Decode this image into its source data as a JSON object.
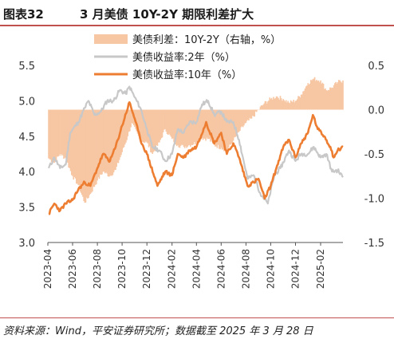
{
  "header": {
    "figure_label": "图表32",
    "title": "3 月美债 10Y-2Y 期限利差扩大"
  },
  "footer": {
    "source": "资料来源：Wind，平安证券研究所；数据截至 2025 年 3 月 28 日"
  },
  "colors": {
    "spread": "#f7c6a3",
    "y2": "#c8c8c8",
    "y10": "#ed7d31",
    "rule": "#c0504d",
    "axis_text": "#333333"
  },
  "chart_data": {
    "type": "line",
    "x_range": [
      "2023-04-01",
      "2025-03-28"
    ],
    "x_ticks": [
      "2023-04",
      "2023-06",
      "2023-08",
      "2023-10",
      "2023-12",
      "2024-02",
      "2024-04",
      "2024-06",
      "2024-08",
      "2024-10",
      "2024-12",
      "2025-02"
    ],
    "y_left": {
      "ticks": [
        "3.0",
        "3.5",
        "4.0",
        "4.5",
        "5.0",
        "5.5"
      ],
      "ylim": [
        3.0,
        5.5
      ]
    },
    "y_right": {
      "ticks": [
        "0.5",
        "0.0",
        "-0.5",
        "-1.0",
        "-1.5"
      ],
      "ylim": [
        -1.5,
        0.5
      ]
    },
    "legend_position": "top-right",
    "series": [
      {
        "name": "美债利差：10Y-2Y（右轴，%）",
        "type": "bar",
        "axis": "right",
        "points": [
          [
            "2023-04-03",
            -0.55
          ],
          [
            "2023-04-17",
            -0.6
          ],
          [
            "2023-05-01",
            -0.5
          ],
          [
            "2023-05-15",
            -0.55
          ],
          [
            "2023-06-01",
            -0.75
          ],
          [
            "2023-06-15",
            -0.85
          ],
          [
            "2023-07-01",
            -1.05
          ],
          [
            "2023-07-15",
            -0.95
          ],
          [
            "2023-08-01",
            -0.8
          ],
          [
            "2023-08-15",
            -0.7
          ],
          [
            "2023-09-01",
            -0.75
          ],
          [
            "2023-09-15",
            -0.68
          ],
          [
            "2023-10-01",
            -0.48
          ],
          [
            "2023-10-15",
            -0.3
          ],
          [
            "2023-10-25",
            -0.15
          ],
          [
            "2023-11-15",
            -0.35
          ],
          [
            "2023-12-01",
            -0.37
          ],
          [
            "2023-12-15",
            -0.5
          ],
          [
            "2024-01-01",
            -0.37
          ],
          [
            "2024-01-15",
            -0.22
          ],
          [
            "2024-02-01",
            -0.33
          ],
          [
            "2024-02-15",
            -0.4
          ],
          [
            "2024-03-01",
            -0.42
          ],
          [
            "2024-03-15",
            -0.4
          ],
          [
            "2024-04-01",
            -0.37
          ],
          [
            "2024-04-15",
            -0.32
          ],
          [
            "2024-05-01",
            -0.33
          ],
          [
            "2024-05-15",
            -0.4
          ],
          [
            "2024-06-01",
            -0.43
          ],
          [
            "2024-06-15",
            -0.46
          ],
          [
            "2024-07-01",
            -0.35
          ],
          [
            "2024-07-15",
            -0.25
          ],
          [
            "2024-08-01",
            -0.15
          ],
          [
            "2024-08-15",
            -0.1
          ],
          [
            "2024-09-01",
            0.0
          ],
          [
            "2024-09-15",
            0.07
          ],
          [
            "2024-10-01",
            0.12
          ],
          [
            "2024-10-15",
            0.15
          ],
          [
            "2024-11-01",
            0.12
          ],
          [
            "2024-11-15",
            0.08
          ],
          [
            "2024-12-01",
            0.1
          ],
          [
            "2024-12-15",
            0.17
          ],
          [
            "2025-01-01",
            0.3
          ],
          [
            "2025-01-15",
            0.35
          ],
          [
            "2025-02-01",
            0.33
          ],
          [
            "2025-02-15",
            0.22
          ],
          [
            "2025-03-01",
            0.25
          ],
          [
            "2025-03-15",
            0.31
          ],
          [
            "2025-03-28",
            0.33
          ]
        ]
      },
      {
        "name": "美债收益率:2年（%）",
        "type": "line",
        "axis": "left",
        "points": [
          [
            "2023-04-03",
            4.05
          ],
          [
            "2023-04-17",
            4.2
          ],
          [
            "2023-05-01",
            4.05
          ],
          [
            "2023-05-15",
            4.1
          ],
          [
            "2023-05-26",
            4.55
          ],
          [
            "2023-06-15",
            4.7
          ],
          [
            "2023-07-01",
            4.9
          ],
          [
            "2023-07-10",
            5.0
          ],
          [
            "2023-07-25",
            4.8
          ],
          [
            "2023-08-10",
            4.85
          ],
          [
            "2023-08-25",
            5.0
          ],
          [
            "2023-09-10",
            5.0
          ],
          [
            "2023-09-25",
            5.15
          ],
          [
            "2023-10-10",
            5.1
          ],
          [
            "2023-10-19",
            5.2
          ],
          [
            "2023-11-01",
            5.05
          ],
          [
            "2023-11-15",
            4.9
          ],
          [
            "2023-12-01",
            4.6
          ],
          [
            "2023-12-14",
            4.35
          ],
          [
            "2024-01-01",
            4.3
          ],
          [
            "2024-01-15",
            4.15
          ],
          [
            "2024-02-01",
            4.25
          ],
          [
            "2024-02-15",
            4.6
          ],
          [
            "2024-03-01",
            4.55
          ],
          [
            "2024-03-15",
            4.7
          ],
          [
            "2024-04-01",
            4.7
          ],
          [
            "2024-04-15",
            4.95
          ],
          [
            "2024-04-30",
            5.0
          ],
          [
            "2024-05-15",
            4.8
          ],
          [
            "2024-06-01",
            4.85
          ],
          [
            "2024-06-15",
            4.7
          ],
          [
            "2024-07-01",
            4.7
          ],
          [
            "2024-07-15",
            4.45
          ],
          [
            "2024-08-05",
            3.9
          ],
          [
            "2024-08-20",
            3.95
          ],
          [
            "2024-09-05",
            3.7
          ],
          [
            "2024-09-24",
            3.55
          ],
          [
            "2024-10-10",
            3.95
          ],
          [
            "2024-10-25",
            4.05
          ],
          [
            "2024-11-15",
            4.3
          ],
          [
            "2024-12-01",
            4.15
          ],
          [
            "2024-12-15",
            4.25
          ],
          [
            "2025-01-01",
            4.25
          ],
          [
            "2025-01-15",
            4.35
          ],
          [
            "2025-02-01",
            4.2
          ],
          [
            "2025-02-15",
            4.25
          ],
          [
            "2025-03-01",
            4.0
          ],
          [
            "2025-03-15",
            4.02
          ],
          [
            "2025-03-28",
            3.92
          ]
        ]
      },
      {
        "name": "美债收益率:10年（%）",
        "type": "line",
        "axis": "left",
        "points": [
          [
            "2023-04-03",
            3.4
          ],
          [
            "2023-04-17",
            3.55
          ],
          [
            "2023-05-01",
            3.45
          ],
          [
            "2023-05-15",
            3.55
          ],
          [
            "2023-06-01",
            3.6
          ],
          [
            "2023-06-15",
            3.75
          ],
          [
            "2023-07-01",
            3.85
          ],
          [
            "2023-07-15",
            3.8
          ],
          [
            "2023-08-01",
            4.05
          ],
          [
            "2023-08-15",
            4.25
          ],
          [
            "2023-09-01",
            4.15
          ],
          [
            "2023-09-15",
            4.35
          ],
          [
            "2023-10-01",
            4.65
          ],
          [
            "2023-10-19",
            4.98
          ],
          [
            "2023-11-01",
            4.75
          ],
          [
            "2023-11-15",
            4.45
          ],
          [
            "2023-12-01",
            4.25
          ],
          [
            "2023-12-27",
            3.8
          ],
          [
            "2024-01-15",
            4.0
          ],
          [
            "2024-02-01",
            3.95
          ],
          [
            "2024-02-15",
            4.25
          ],
          [
            "2024-03-01",
            4.2
          ],
          [
            "2024-03-15",
            4.3
          ],
          [
            "2024-04-01",
            4.35
          ],
          [
            "2024-04-25",
            4.7
          ],
          [
            "2024-05-15",
            4.4
          ],
          [
            "2024-06-01",
            4.55
          ],
          [
            "2024-06-15",
            4.25
          ],
          [
            "2024-07-01",
            4.4
          ],
          [
            "2024-07-15",
            4.2
          ],
          [
            "2024-08-05",
            3.8
          ],
          [
            "2024-08-20",
            3.85
          ],
          [
            "2024-09-01",
            3.9
          ],
          [
            "2024-09-16",
            3.62
          ],
          [
            "2024-10-01",
            3.8
          ],
          [
            "2024-10-15",
            4.05
          ],
          [
            "2024-11-01",
            4.35
          ],
          [
            "2024-11-15",
            4.45
          ],
          [
            "2024-12-01",
            4.2
          ],
          [
            "2024-12-15",
            4.4
          ],
          [
            "2025-01-01",
            4.55
          ],
          [
            "2025-01-13",
            4.8
          ],
          [
            "2025-01-25",
            4.6
          ],
          [
            "2025-02-10",
            4.5
          ],
          [
            "2025-02-25",
            4.35
          ],
          [
            "2025-03-05",
            4.2
          ],
          [
            "2025-03-15",
            4.3
          ],
          [
            "2025-03-28",
            4.35
          ]
        ]
      }
    ]
  }
}
